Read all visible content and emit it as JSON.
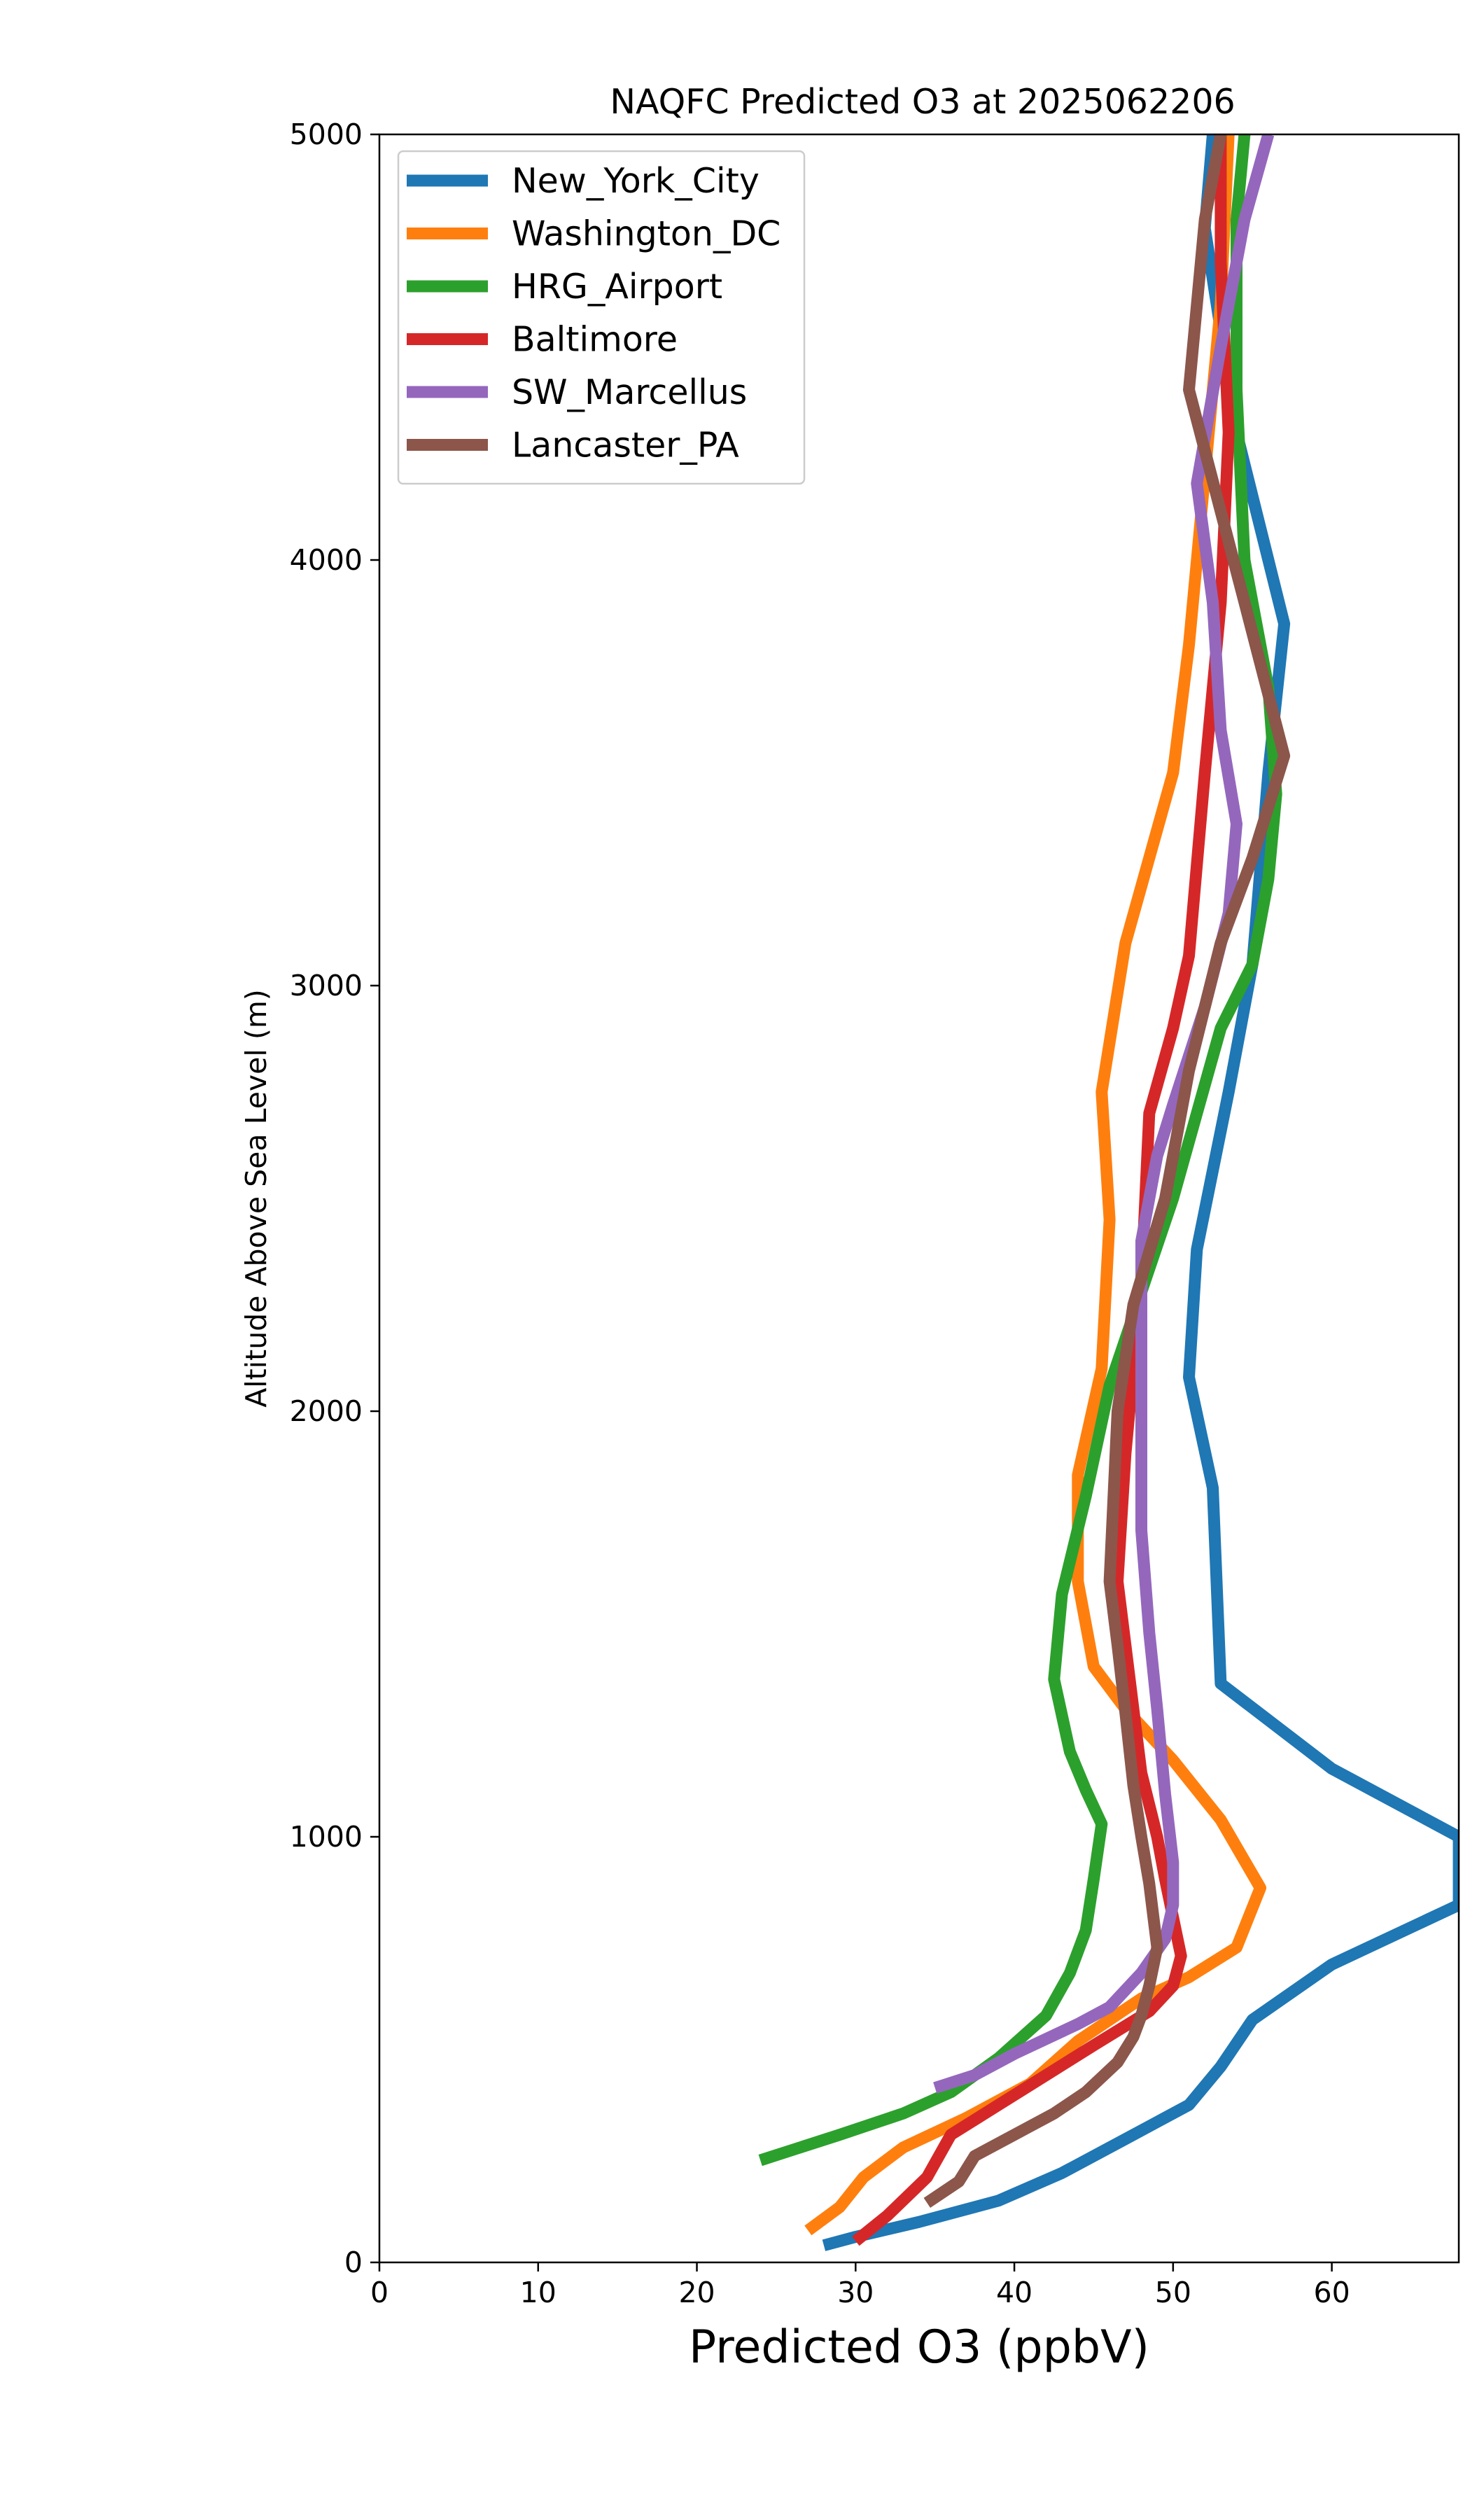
{
  "chart_data": {
    "type": "line",
    "title": "NAQFC Predicted O3 at 2025062206",
    "xlabel": "Predicted O3 (ppbV)",
    "ylabel": "Altitude Above Sea Level (m)",
    "xlim": [
      0,
      68
    ],
    "ylim": [
      0,
      5000
    ],
    "xticks": [
      0,
      10,
      20,
      30,
      40,
      50,
      60
    ],
    "yticks": [
      0,
      1000,
      2000,
      3000,
      4000,
      5000
    ],
    "grid": false,
    "legend_position": "upper-left",
    "series": [
      {
        "name": "New_York_City",
        "color": "#1f77b4",
        "points": [
          [
            28,
            40
          ],
          [
            30,
            60
          ],
          [
            34,
            95
          ],
          [
            39,
            145
          ],
          [
            43,
            210
          ],
          [
            47,
            290
          ],
          [
            51,
            370
          ],
          [
            53,
            460
          ],
          [
            55,
            570
          ],
          [
            60,
            700
          ],
          [
            68,
            840
          ],
          [
            68,
            1000
          ],
          [
            60,
            1160
          ],
          [
            53,
            1360
          ],
          [
            52.5,
            1820
          ],
          [
            51,
            2080
          ],
          [
            51.5,
            2380
          ],
          [
            53.5,
            2750
          ],
          [
            55,
            3050
          ],
          [
            56,
            3500
          ],
          [
            57,
            3850
          ],
          [
            54,
            4300
          ],
          [
            52,
            4780
          ],
          [
            52.5,
            5000
          ]
        ]
      },
      {
        "name": "Washington_DC",
        "color": "#ff7f0e",
        "points": [
          [
            27,
            75
          ],
          [
            29,
            130
          ],
          [
            30.5,
            200
          ],
          [
            33,
            270
          ],
          [
            37,
            340
          ],
          [
            41,
            420
          ],
          [
            44,
            520
          ],
          [
            48,
            620
          ],
          [
            51,
            670
          ],
          [
            54,
            740
          ],
          [
            55.5,
            880
          ],
          [
            53,
            1040
          ],
          [
            50,
            1180
          ],
          [
            47,
            1300
          ],
          [
            45,
            1400
          ],
          [
            44,
            1600
          ],
          [
            44,
            1850
          ],
          [
            45.5,
            2100
          ],
          [
            46,
            2450
          ],
          [
            45.5,
            2750
          ],
          [
            47,
            3100
          ],
          [
            50,
            3500
          ],
          [
            51,
            3800
          ],
          [
            52,
            4200
          ],
          [
            53,
            4600
          ],
          [
            53.5,
            5000
          ]
        ]
      },
      {
        "name": "HRG_Airport",
        "color": "#2ca02c",
        "points": [
          [
            24,
            240
          ],
          [
            29,
            300
          ],
          [
            33,
            350
          ],
          [
            36,
            400
          ],
          [
            39,
            480
          ],
          [
            42,
            580
          ],
          [
            43.5,
            680
          ],
          [
            44.5,
            780
          ],
          [
            45,
            900
          ],
          [
            45.5,
            1030
          ],
          [
            44.5,
            1110
          ],
          [
            43.5,
            1200
          ],
          [
            42.5,
            1370
          ],
          [
            43,
            1570
          ],
          [
            44.5,
            1800
          ],
          [
            46,
            2060
          ],
          [
            48,
            2280
          ],
          [
            50,
            2500
          ],
          [
            51.5,
            2700
          ],
          [
            53,
            2900
          ],
          [
            55,
            3050
          ],
          [
            56,
            3250
          ],
          [
            56.5,
            3450
          ],
          [
            56,
            3700
          ],
          [
            54.5,
            4000
          ],
          [
            54,
            4400
          ],
          [
            54,
            4800
          ],
          [
            54.5,
            5000
          ]
        ]
      },
      {
        "name": "Baltimore",
        "color": "#d62728",
        "points": [
          [
            30,
            50
          ],
          [
            32,
            110
          ],
          [
            34.5,
            200
          ],
          [
            36,
            300
          ],
          [
            39,
            370
          ],
          [
            42,
            440
          ],
          [
            45,
            510
          ],
          [
            48.5,
            590
          ],
          [
            50,
            650
          ],
          [
            50.5,
            720
          ],
          [
            49.5,
            900
          ],
          [
            49,
            1000
          ],
          [
            48,
            1150
          ],
          [
            47.5,
            1300
          ],
          [
            46.5,
            1600
          ],
          [
            47,
            1900
          ],
          [
            48,
            2300
          ],
          [
            48.5,
            2700
          ],
          [
            50,
            2900
          ],
          [
            51,
            3070
          ],
          [
            52,
            3500
          ],
          [
            53,
            3900
          ],
          [
            53.5,
            4300
          ],
          [
            53,
            4700
          ],
          [
            53,
            5000
          ]
        ]
      },
      {
        "name": "SW_Marcellus",
        "color": "#9467bd",
        "points": [
          [
            35,
            410
          ],
          [
            37.5,
            440
          ],
          [
            40,
            490
          ],
          [
            44,
            560
          ],
          [
            46,
            600
          ],
          [
            48,
            680
          ],
          [
            49.5,
            760
          ],
          [
            50,
            840
          ],
          [
            50,
            940
          ],
          [
            49.5,
            1100
          ],
          [
            49,
            1300
          ],
          [
            48.5,
            1480
          ],
          [
            48,
            1720
          ],
          [
            48,
            2000
          ],
          [
            48,
            2400
          ],
          [
            49,
            2600
          ],
          [
            50,
            2720
          ],
          [
            52,
            2950
          ],
          [
            53.5,
            3170
          ],
          [
            54,
            3380
          ],
          [
            53,
            3600
          ],
          [
            52.5,
            3900
          ],
          [
            51.5,
            4180
          ],
          [
            53,
            4500
          ],
          [
            54.5,
            4800
          ],
          [
            56,
            5000
          ]
        ]
      },
      {
        "name": "Lancaster_PA",
        "color": "#8c564b",
        "points": [
          [
            34.5,
            140
          ],
          [
            36.5,
            190
          ],
          [
            37.5,
            250
          ],
          [
            40,
            300
          ],
          [
            42.5,
            350
          ],
          [
            44.5,
            400
          ],
          [
            46.5,
            470
          ],
          [
            47.5,
            530
          ],
          [
            48,
            580
          ],
          [
            48.5,
            650
          ],
          [
            49,
            740
          ],
          [
            48.5,
            890
          ],
          [
            48,
            1000
          ],
          [
            47.5,
            1120
          ],
          [
            47,
            1290
          ],
          [
            46.5,
            1450
          ],
          [
            46,
            1600
          ],
          [
            46.5,
            2000
          ],
          [
            47.5,
            2250
          ],
          [
            49.5,
            2500
          ],
          [
            51,
            2800
          ],
          [
            53,
            3100
          ],
          [
            55,
            3300
          ],
          [
            57,
            3540
          ],
          [
            54.5,
            3900
          ],
          [
            51,
            4400
          ],
          [
            52,
            4800
          ],
          [
            53,
            5000
          ]
        ]
      }
    ]
  }
}
